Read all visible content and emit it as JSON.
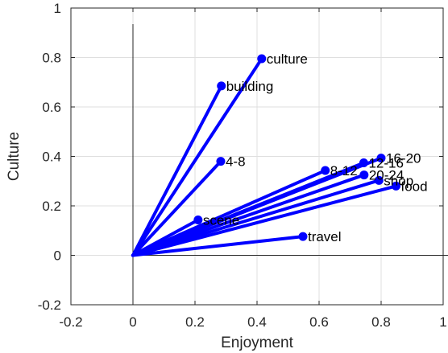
{
  "chart_data": {
    "type": "scatter",
    "title": "",
    "xlabel": "Enjoyment",
    "ylabel": "Culture",
    "xlim": [
      -0.2,
      1
    ],
    "ylim": [
      -0.2,
      1
    ],
    "xticks": [
      "-0.2",
      "0",
      "0.2",
      "0.4",
      "0.6",
      "0.8",
      "1"
    ],
    "yticks": [
      "-0.2",
      "0",
      "0.2",
      "0.4",
      "0.6",
      "0.8",
      "1"
    ],
    "grid": true,
    "origin": [
      0,
      0
    ],
    "line_color": "#0000ff",
    "points": [
      {
        "label": "culture",
        "x": 0.415,
        "y": 0.795
      },
      {
        "label": "building",
        "x": 0.285,
        "y": 0.685
      },
      {
        "label": "4-8",
        "x": 0.283,
        "y": 0.38
      },
      {
        "label": "8-12",
        "x": 0.62,
        "y": 0.343
      },
      {
        "label": "12-16",
        "x": 0.744,
        "y": 0.374
      },
      {
        "label": "16-20",
        "x": 0.8,
        "y": 0.393
      },
      {
        "label": "20-24",
        "x": 0.745,
        "y": 0.325
      },
      {
        "label": "shop",
        "x": 0.793,
        "y": 0.303
      },
      {
        "label": "food",
        "x": 0.848,
        "y": 0.28
      },
      {
        "label": "scene",
        "x": 0.21,
        "y": 0.143
      },
      {
        "label": "travel",
        "x": 0.548,
        "y": 0.076
      }
    ]
  }
}
